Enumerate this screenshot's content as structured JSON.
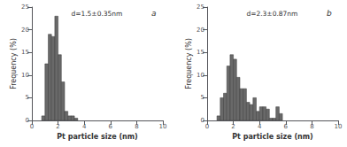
{
  "chart_data": [
    {
      "type": "histogram",
      "title": "a",
      "annotation": "d=1.5±0.35nm",
      "bins": [
        0.75,
        1.0,
        1.25,
        1.5,
        1.75,
        2.0,
        2.25,
        2.5,
        2.75,
        3.0,
        3.25,
        3.5
      ],
      "values": [
        1.0,
        12.5,
        19.0,
        18.5,
        23.0,
        14.5,
        8.5,
        2.0,
        1.0,
        1.0,
        0.5
      ],
      "color": "#696969",
      "xlabel": "Pt particle size (nm)",
      "ylabel": "Frequency (%)",
      "xlim": [
        0,
        10
      ],
      "ylim": [
        0,
        25
      ],
      "xticks": [
        0,
        2,
        4,
        6,
        8,
        10
      ],
      "yticks": [
        0,
        5,
        10,
        15,
        20,
        25
      ],
      "grid": false
    },
    {
      "type": "histogram",
      "title": "b",
      "annotation": "d=2.3±0.87nm",
      "bins": [
        0.75,
        1.0,
        1.25,
        1.5,
        1.75,
        2.0,
        2.25,
        2.5,
        2.75,
        3.0,
        3.25,
        3.5,
        3.75,
        4.0,
        4.25,
        4.5,
        4.75,
        5.0,
        5.25,
        5.5,
        5.75
      ],
      "values": [
        1.0,
        5.0,
        6.0,
        12.0,
        14.5,
        13.5,
        9.5,
        7.0,
        7.0,
        4.0,
        3.5,
        5.0,
        2.0,
        3.0,
        3.0,
        2.5,
        0.5,
        0.5,
        3.0,
        1.5
      ],
      "color": "#696969",
      "xlabel": "Pt particle size (nm)",
      "ylabel": "Frequency (%)",
      "xlim": [
        0,
        10
      ],
      "ylim": [
        0,
        25
      ],
      "xticks": [
        0,
        2,
        4,
        6,
        8,
        10
      ],
      "yticks": [
        0,
        5,
        10,
        15,
        20,
        25
      ],
      "grid": false
    }
  ]
}
